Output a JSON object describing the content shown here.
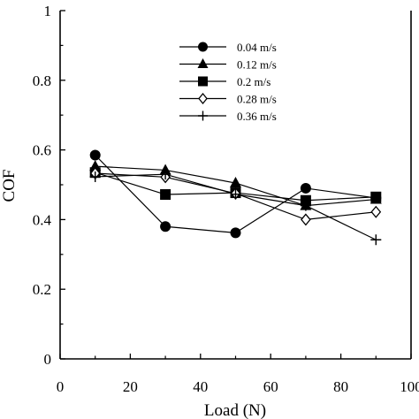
{
  "chart_data": {
    "type": "line",
    "xlabel": "Load (N)",
    "ylabel": "COF",
    "xlim": [
      0,
      100
    ],
    "ylim": [
      0,
      1
    ],
    "xticks": [
      "0",
      "20",
      "40",
      "60",
      "80",
      "100"
    ],
    "yticks": [
      "0",
      "0.2",
      "0.4",
      "0.6",
      "0.8",
      "1"
    ],
    "grid": false,
    "legend_position": "top-center",
    "x": [
      10,
      30,
      50,
      70,
      90
    ],
    "series": [
      {
        "name": "0.04 m/s",
        "marker": "circle-filled",
        "values": [
          0.585,
          0.38,
          0.362,
          0.49,
          0.462
        ]
      },
      {
        "name": "0.12 m/s",
        "marker": "triangle-filled",
        "values": [
          0.553,
          0.542,
          0.505,
          0.44,
          0.458
        ]
      },
      {
        "name": "0.2 m/s",
        "marker": "square-filled",
        "values": [
          0.535,
          0.472,
          0.477,
          0.455,
          0.465
        ]
      },
      {
        "name": "0.28 m/s",
        "marker": "diamond-open",
        "values": [
          0.533,
          0.522,
          0.475,
          0.4,
          0.422
        ]
      },
      {
        "name": "0.36 m/s",
        "marker": "plus",
        "values": [
          0.523,
          0.53,
          0.473,
          0.44,
          0.342
        ]
      }
    ]
  }
}
